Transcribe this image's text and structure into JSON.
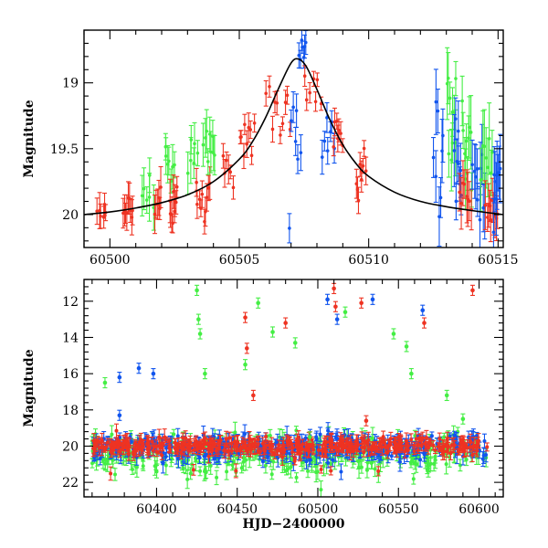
{
  "chart_data": [
    {
      "panel": "top",
      "type": "scatter",
      "title": "",
      "xlabel": "",
      "ylabel": "Magnitude",
      "xlim": [
        60499,
        60515.2
      ],
      "ylim": [
        20.25,
        18.6
      ],
      "y_inverted": true,
      "xticks": [
        60500,
        60505,
        60510,
        60515
      ],
      "xtick_labels": [
        "60500",
        "60505",
        "60510",
        "60515"
      ],
      "yticks": [
        19,
        19.5,
        20
      ],
      "ytick_labels": [
        "19",
        "19.5",
        "20"
      ],
      "grid": false,
      "colors": {
        "red": "#ee3322",
        "green": "#44ee44",
        "blue": "#1155ee",
        "model": "#000000"
      },
      "model_curve": {
        "name": "",
        "x": [
          60499,
          60500,
          60501,
          60502,
          60503,
          60504,
          60505,
          60505.5,
          60506,
          60506.5,
          60507,
          60507.3,
          60507.6,
          60508,
          60508.5,
          60509,
          60509.5,
          60510,
          60511,
          60512,
          60513,
          60514,
          60515.2
        ],
        "y": [
          20.0,
          19.98,
          19.95,
          19.91,
          19.85,
          19.75,
          19.58,
          19.45,
          19.27,
          19.05,
          18.85,
          18.82,
          18.88,
          19.05,
          19.28,
          19.47,
          19.61,
          19.71,
          19.83,
          19.9,
          19.94,
          19.97,
          20.0
        ]
      },
      "clusters": [
        {
          "series": "red",
          "x": [
            60499.5,
            60499.9
          ],
          "y": 19.95,
          "spread": 0.14,
          "err": 0.1
        },
        {
          "series": "red",
          "x": [
            60500.5,
            60500.9
          ],
          "y": 19.93,
          "spread": 0.14,
          "err": 0.1
        },
        {
          "series": "green",
          "x": [
            60501.2,
            60501.7
          ],
          "y": 19.85,
          "spread": 0.2,
          "err": 0.13
        },
        {
          "series": "red",
          "x": [
            60501.7,
            60502.0
          ],
          "y": 19.95,
          "spread": 0.16,
          "err": 0.12
        },
        {
          "series": "green",
          "x": [
            60502.1,
            60502.5
          ],
          "y": 19.7,
          "spread": 0.25,
          "err": 0.13
        },
        {
          "series": "red",
          "x": [
            60502.3,
            60502.6
          ],
          "y": 19.9,
          "spread": 0.2,
          "err": 0.12
        },
        {
          "series": "green",
          "x": [
            60503.0,
            60503.4
          ],
          "y": 19.6,
          "spread": 0.25,
          "err": 0.13
        },
        {
          "series": "red",
          "x": [
            60503.3,
            60503.9
          ],
          "y": 19.85,
          "spread": 0.2,
          "err": 0.1
        },
        {
          "series": "green",
          "x": [
            60503.6,
            60504.1
          ],
          "y": 19.5,
          "spread": 0.2,
          "err": 0.12
        },
        {
          "series": "red",
          "x": [
            60504.3,
            60504.8
          ],
          "y": 19.65,
          "spread": 0.15,
          "err": 0.08
        },
        {
          "series": "red",
          "x": [
            60505.0,
            60505.6
          ],
          "y": 19.4,
          "spread": 0.16,
          "err": 0.08
        },
        {
          "series": "red",
          "x": [
            60506.0,
            60507.0
          ],
          "y": 19.15,
          "spread": 0.22,
          "err": 0.08
        },
        {
          "series": "blue",
          "x": [
            60506.9,
            60507.4
          ],
          "y": 19.35,
          "spread": 0.55,
          "err": 0.1
        },
        {
          "series": "blue",
          "x": [
            60507.3,
            60507.6
          ],
          "y": 18.75,
          "spread": 0.12,
          "err": 0.07
        },
        {
          "series": "red",
          "x": [
            60507.5,
            60508.2
          ],
          "y": 18.98,
          "spread": 0.16,
          "err": 0.07
        },
        {
          "series": "blue",
          "x": [
            60508.2,
            60508.7
          ],
          "y": 19.45,
          "spread": 0.35,
          "err": 0.1
        },
        {
          "series": "red",
          "x": [
            60508.6,
            60509.0
          ],
          "y": 19.4,
          "spread": 0.16,
          "err": 0.08
        },
        {
          "series": "red",
          "x": [
            60509.5,
            60509.9
          ],
          "y": 19.7,
          "spread": 0.18,
          "err": 0.08
        },
        {
          "series": "blue",
          "x": [
            60512.5,
            60512.9
          ],
          "y": 19.55,
          "spread": 0.5,
          "err": 0.2
        },
        {
          "series": "green",
          "x": [
            60513.0,
            60513.4
          ],
          "y": 19.3,
          "spread": 0.45,
          "err": 0.2
        },
        {
          "series": "blue",
          "x": [
            60513.3,
            60513.6
          ],
          "y": 19.7,
          "spread": 0.4,
          "err": 0.2
        },
        {
          "series": "green",
          "x": [
            60513.6,
            60514.0
          ],
          "y": 19.5,
          "spread": 0.45,
          "err": 0.2
        },
        {
          "series": "red",
          "x": [
            60513.5,
            60514.0
          ],
          "y": 19.95,
          "spread": 0.2,
          "err": 0.15
        },
        {
          "series": "blue",
          "x": [
            60514.0,
            60514.5
          ],
          "y": 19.8,
          "spread": 0.35,
          "err": 0.2
        },
        {
          "series": "green",
          "x": [
            60514.3,
            60514.8
          ],
          "y": 19.7,
          "spread": 0.4,
          "err": 0.2
        },
        {
          "series": "red",
          "x": [
            60514.5,
            60515.0
          ],
          "y": 20.0,
          "spread": 0.2,
          "err": 0.15
        },
        {
          "series": "blue",
          "x": [
            60514.8,
            60515.1
          ],
          "y": 19.85,
          "spread": 0.3,
          "err": 0.2
        }
      ]
    },
    {
      "panel": "bottom",
      "type": "scatter",
      "title": "",
      "xlabel": "HJD−2400000",
      "ylabel": "Magnitude",
      "xlim": [
        60355,
        60615
      ],
      "ylim": [
        22.8,
        10.8
      ],
      "y_inverted": true,
      "xticks": [
        60400,
        60450,
        60500,
        60550,
        60600
      ],
      "xtick_labels": [
        "60400",
        "60450",
        "60500",
        "60550",
        "60600"
      ],
      "yticks": [
        12,
        14,
        16,
        18,
        20,
        22
      ],
      "ytick_labels": [
        "12",
        "14",
        "16",
        "18",
        "20",
        "22"
      ],
      "grid": false,
      "baseline": {
        "x": [
          60360,
          60605
        ],
        "mag": 20.0
      },
      "bands": [
        {
          "series": "green",
          "count": 340,
          "center": 20.4,
          "spread": 0.9,
          "err": 0.4
        },
        {
          "series": "blue",
          "count": 340,
          "center": 20.05,
          "spread": 0.6,
          "err": 0.35
        },
        {
          "series": "red",
          "count": 420,
          "center": 20.0,
          "spread": 0.38,
          "err": 0.3
        }
      ],
      "outliers": [
        {
          "series": "green",
          "x": 60368,
          "y": 16.5
        },
        {
          "series": "blue",
          "x": 60377,
          "y": 16.2
        },
        {
          "series": "blue",
          "x": 60377,
          "y": 18.3
        },
        {
          "series": "blue",
          "x": 60389,
          "y": 15.7
        },
        {
          "series": "blue",
          "x": 60398,
          "y": 16.0
        },
        {
          "series": "green",
          "x": 60425,
          "y": 11.4
        },
        {
          "series": "green",
          "x": 60426,
          "y": 13.0
        },
        {
          "series": "green",
          "x": 60427,
          "y": 13.8
        },
        {
          "series": "green",
          "x": 60430,
          "y": 16.0
        },
        {
          "series": "green",
          "x": 60455,
          "y": 15.5
        },
        {
          "series": "red",
          "x": 60455,
          "y": 12.9
        },
        {
          "series": "red",
          "x": 60456,
          "y": 14.6
        },
        {
          "series": "green",
          "x": 60463,
          "y": 12.1
        },
        {
          "series": "red",
          "x": 60460,
          "y": 17.2
        },
        {
          "series": "green",
          "x": 60472,
          "y": 13.7
        },
        {
          "series": "red",
          "x": 60480,
          "y": 13.2
        },
        {
          "series": "green",
          "x": 60486,
          "y": 14.3
        },
        {
          "series": "green",
          "x": 60495,
          "y": 19.5
        },
        {
          "series": "blue",
          "x": 60506,
          "y": 11.9
        },
        {
          "series": "red",
          "x": 60510,
          "y": 11.3
        },
        {
          "series": "red",
          "x": 60511,
          "y": 12.3
        },
        {
          "series": "blue",
          "x": 60512,
          "y": 13.0
        },
        {
          "series": "green",
          "x": 60517,
          "y": 12.6
        },
        {
          "series": "red",
          "x": 60527,
          "y": 12.1
        },
        {
          "series": "blue",
          "x": 60534,
          "y": 11.9
        },
        {
          "series": "red",
          "x": 60530,
          "y": 18.6
        },
        {
          "series": "green",
          "x": 60547,
          "y": 13.8
        },
        {
          "series": "green",
          "x": 60555,
          "y": 14.5
        },
        {
          "series": "green",
          "x": 60558,
          "y": 16.0
        },
        {
          "series": "blue",
          "x": 60565,
          "y": 12.5
        },
        {
          "series": "red",
          "x": 60566,
          "y": 13.2
        },
        {
          "series": "red",
          "x": 60596,
          "y": 11.4
        },
        {
          "series": "green",
          "x": 60580,
          "y": 17.2
        },
        {
          "series": "green",
          "x": 60590,
          "y": 18.5
        }
      ]
    }
  ]
}
